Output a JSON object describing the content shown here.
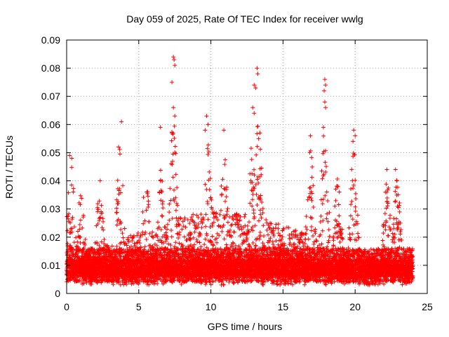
{
  "chart_data": {
    "type": "scatter",
    "title": "Day 059 of 2025, Rate Of TEC Index for receiver wwlg",
    "xlabel": "GPS time / hours",
    "ylabel": "ROTI / TECUs",
    "xlim": [
      0,
      25
    ],
    "ylim": [
      0,
      0.09
    ],
    "xticks": [
      "0",
      "5",
      "10",
      "15",
      "20",
      "25"
    ],
    "yticks": [
      "0",
      "0.01",
      "0.02",
      "0.03",
      "0.04",
      "0.05",
      "0.06",
      "0.07",
      "0.08",
      "0.09"
    ],
    "grid": true,
    "marker": "+",
    "color": "#ff0000",
    "x_range_data": [
      0,
      24
    ],
    "notable_points": [
      {
        "x": 0.2,
        "y": 0.049
      },
      {
        "x": 0.35,
        "y": 0.048
      },
      {
        "x": 3.8,
        "y": 0.061
      },
      {
        "x": 3.6,
        "y": 0.052
      },
      {
        "x": 6.5,
        "y": 0.059
      },
      {
        "x": 7.4,
        "y": 0.084
      },
      {
        "x": 7.45,
        "y": 0.083
      },
      {
        "x": 7.5,
        "y": 0.081
      },
      {
        "x": 7.3,
        "y": 0.075
      },
      {
        "x": 7.4,
        "y": 0.066
      },
      {
        "x": 7.5,
        "y": 0.063
      },
      {
        "x": 7.3,
        "y": 0.057
      },
      {
        "x": 9.7,
        "y": 0.063
      },
      {
        "x": 9.8,
        "y": 0.06
      },
      {
        "x": 9.6,
        "y": 0.058
      },
      {
        "x": 10.9,
        "y": 0.058
      },
      {
        "x": 13.2,
        "y": 0.08
      },
      {
        "x": 13.25,
        "y": 0.078
      },
      {
        "x": 13.0,
        "y": 0.074
      },
      {
        "x": 13.1,
        "y": 0.073
      },
      {
        "x": 12.9,
        "y": 0.066
      },
      {
        "x": 13.0,
        "y": 0.064
      },
      {
        "x": 13.4,
        "y": 0.057
      },
      {
        "x": 16.9,
        "y": 0.056
      },
      {
        "x": 17.9,
        "y": 0.076
      },
      {
        "x": 17.95,
        "y": 0.074
      },
      {
        "x": 17.85,
        "y": 0.072
      },
      {
        "x": 17.9,
        "y": 0.068
      },
      {
        "x": 17.95,
        "y": 0.066
      },
      {
        "x": 17.8,
        "y": 0.059
      },
      {
        "x": 19.9,
        "y": 0.058
      },
      {
        "x": 20.0,
        "y": 0.056
      },
      {
        "x": 19.85,
        "y": 0.054
      },
      {
        "x": 22.2,
        "y": 0.044
      },
      {
        "x": 22.8,
        "y": 0.044
      },
      {
        "x": 22.9,
        "y": 0.04
      }
    ]
  }
}
